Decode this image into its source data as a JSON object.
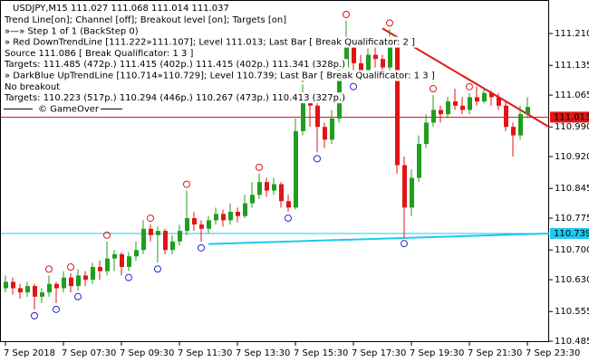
{
  "chart_data": {
    "type": "candlestick",
    "title": "USDJPY,M15  111.027 111.068 111.014 111.037",
    "annotations": [
      "Trend Line[on]; Channel [off]; Breakout level [on]; Targets [on]",
      "»—» Step 1 of 1 (BackStep 0)",
      "» Red DownTrendLine [111.222»111.107]; Level 111.013; Last Bar [ Break Qualificator: 2 ]",
      "Source 111.086 [ Break Qualificator: 1 3 ]",
      "Targets: 111.485 (472p.) 111.415 (402p.) 111.415 (402p.) 111.341 (328p.)",
      "» DarkBlue UpTrendLine [110.714»110.729]; Level 110.739; Last Bar [ Break Qualificator: 1 3 ]",
      "No breakout",
      "Targets: 110.223 (517p.) 110.294 (446p.) 110.267 (473p.) 110.413 (327p.)",
      "© GameOver"
    ],
    "categories": [
      "7 Sep 2018",
      null,
      null,
      null,
      null,
      null,
      null,
      null,
      "7 Sep 07:30",
      null,
      null,
      null,
      null,
      null,
      null,
      null,
      "7 Sep 09:30",
      null,
      null,
      null,
      null,
      null,
      null,
      null,
      "7 Sep 11:30",
      null,
      null,
      null,
      null,
      null,
      null,
      null,
      "7 Sep 13:30",
      null,
      null,
      null,
      null,
      null,
      null,
      null,
      "7 Sep 15:30",
      null,
      null,
      null,
      null,
      null,
      null,
      null,
      "7 Sep 17:30",
      null,
      null,
      null,
      null,
      null,
      null,
      null,
      "7 Sep 19:30",
      null,
      null,
      null,
      null,
      null,
      null,
      null,
      "7 Sep 21:30",
      null,
      null,
      null,
      null,
      null,
      null,
      null,
      "7 Sep 23:30"
    ],
    "open": [
      110.61,
      110.625,
      110.61,
      110.6,
      110.615,
      110.59,
      110.6,
      110.62,
      110.61,
      110.635,
      110.615,
      110.64,
      110.63,
      110.66,
      110.65,
      110.68,
      110.69,
      110.66,
      110.685,
      110.7,
      110.75,
      110.735,
      110.745,
      110.7,
      110.72,
      110.745,
      110.775,
      110.76,
      110.75,
      110.77,
      110.785,
      110.77,
      110.79,
      110.78,
      110.81,
      110.83,
      110.86,
      110.84,
      110.855,
      110.815,
      110.8,
      110.98,
      111.06,
      111.04,
      110.99,
      110.96,
      111.01,
      111.13,
      111.18,
      111.14,
      111.12,
      111.16,
      111.15,
      111.13,
      111.2,
      110.9,
      110.8,
      110.87,
      110.95,
      111.0,
      111.03,
      111.02,
      111.05,
      111.04,
      111.03,
      111.06,
      111.05,
      111.07,
      111.06,
      111.04,
      110.99,
      110.97,
      111.02
    ],
    "high": [
      110.64,
      110.635,
      110.62,
      110.625,
      110.62,
      110.61,
      110.64,
      110.625,
      110.65,
      110.645,
      110.655,
      110.65,
      110.67,
      110.675,
      110.72,
      110.7,
      110.695,
      110.695,
      110.72,
      110.77,
      110.76,
      110.755,
      110.75,
      110.735,
      110.76,
      110.84,
      110.79,
      110.77,
      110.78,
      110.8,
      110.795,
      110.81,
      110.8,
      110.83,
      110.86,
      110.88,
      110.87,
      110.87,
      110.86,
      110.83,
      111.01,
      111.09,
      111.07,
      111.05,
      111.0,
      111.03,
      111.15,
      111.24,
      111.19,
      111.16,
      111.175,
      111.18,
      111.16,
      111.22,
      111.205,
      110.92,
      110.89,
      110.97,
      111.02,
      111.065,
      111.04,
      111.06,
      111.08,
      111.06,
      111.07,
      111.085,
      111.08,
      111.075,
      111.07,
      111.05,
      111.0,
      111.04,
      111.06
    ],
    "low": [
      110.6,
      110.595,
      110.585,
      110.59,
      110.56,
      110.575,
      110.59,
      110.575,
      110.6,
      110.6,
      110.605,
      110.615,
      110.62,
      110.63,
      110.64,
      110.65,
      110.64,
      110.65,
      110.675,
      110.69,
      110.72,
      110.67,
      110.69,
      110.69,
      110.71,
      110.735,
      110.745,
      110.72,
      110.74,
      110.76,
      110.755,
      110.76,
      110.765,
      110.775,
      110.8,
      110.82,
      110.825,
      110.83,
      110.8,
      110.79,
      110.795,
      110.97,
      110.99,
      110.93,
      110.94,
      110.95,
      111.0,
      111.12,
      111.1,
      111.1,
      111.11,
      111.13,
      111.11,
      111.12,
      110.88,
      110.73,
      110.78,
      110.86,
      110.94,
      110.99,
      111.0,
      111.01,
      111.03,
      111.02,
      111.02,
      111.04,
      111.045,
      111.04,
      111.03,
      110.98,
      110.92,
      110.96,
      111.01
    ],
    "close": [
      110.625,
      110.61,
      110.6,
      110.615,
      110.59,
      110.6,
      110.62,
      110.61,
      110.635,
      110.615,
      110.64,
      110.63,
      110.66,
      110.65,
      110.68,
      110.69,
      110.66,
      110.685,
      110.7,
      110.75,
      110.735,
      110.745,
      110.7,
      110.72,
      110.745,
      110.775,
      110.76,
      110.75,
      110.77,
      110.785,
      110.77,
      110.79,
      110.78,
      110.81,
      110.83,
      110.86,
      110.84,
      110.855,
      110.815,
      110.8,
      110.98,
      111.06,
      111.04,
      110.99,
      110.96,
      111.01,
      111.13,
      111.18,
      111.14,
      111.12,
      111.16,
      111.15,
      111.13,
      111.2,
      110.9,
      110.8,
      110.87,
      110.95,
      111.0,
      111.03,
      111.02,
      111.05,
      111.04,
      111.03,
      111.06,
      111.05,
      111.07,
      111.06,
      111.04,
      110.99,
      110.97,
      111.02,
      111.037
    ],
    "up_color": "#1f9e1f",
    "down_color": "#e31414",
    "up_fractals": [
      6,
      9,
      14,
      20,
      25,
      35,
      41,
      47,
      53,
      59,
      64
    ],
    "down_fractals": [
      4,
      7,
      10,
      17,
      21,
      27,
      39,
      43,
      48,
      55
    ],
    "ylim": [
      110.483,
      111.289
    ],
    "yticks": [
      {
        "value": 111.21,
        "label": "111.210"
      },
      111.135,
      111.065,
      {
        "value": 110.99,
        "label": "110.990"
      },
      {
        "value": 110.92,
        "label": "110.920"
      },
      110.845,
      110.775,
      {
        "value": 110.7,
        "label": "110.700"
      },
      {
        "value": 110.63,
        "label": "110.630"
      },
      110.555,
      110.485
    ],
    "levels": [
      {
        "value": 111.013,
        "color": "#e31414",
        "label_color": "#ffffff"
      },
      {
        "value": 110.739,
        "color": "#1ec8f0",
        "label_color": "#000000"
      }
    ],
    "trendlines": [
      {
        "color": "#e31414",
        "x": [
          52,
          75
        ],
        "y": [
          111.222,
          110.99
        ]
      },
      {
        "color": "#1ec8f0",
        "x": [
          28,
          75
        ],
        "y": [
          110.714,
          110.739
        ]
      }
    ]
  }
}
